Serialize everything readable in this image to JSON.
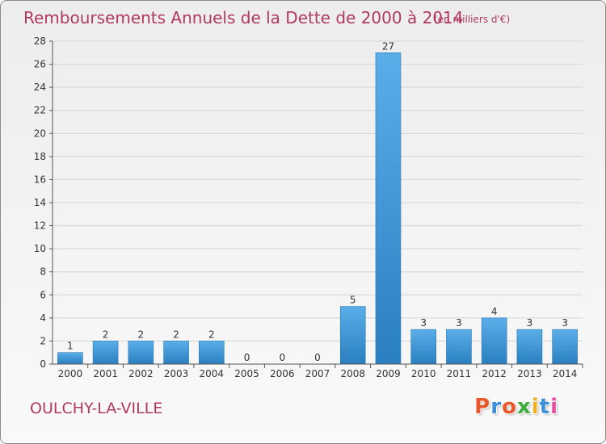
{
  "header": {
    "title": "Remboursements Annuels de la Dette de 2000 à 2014",
    "unit": "(en milliers d'€)"
  },
  "footer": {
    "commune": "OULCHY-LA-VILLE",
    "logo": "Proxiti"
  },
  "colors": {
    "bar_top": "#5aaee8",
    "bar_bottom": "#2a7fc0",
    "title": "#b03a5c",
    "logo_letters": [
      "#e8572a",
      "#3a8fd8",
      "#e8572a",
      "#3cae3c",
      "#f0b020",
      "#3a8fd8",
      "#e84ea0"
    ]
  },
  "chart_data": {
    "type": "bar",
    "categories": [
      "2000",
      "2001",
      "2002",
      "2003",
      "2004",
      "2005",
      "2006",
      "2007",
      "2008",
      "2009",
      "2010",
      "2011",
      "2012",
      "2013",
      "2014"
    ],
    "values": [
      1,
      2,
      2,
      2,
      2,
      0,
      0,
      0,
      5,
      27,
      3,
      3,
      4,
      3,
      3
    ],
    "ylim": [
      0,
      28
    ],
    "yticks": [
      0,
      2,
      4,
      6,
      8,
      10,
      12,
      14,
      16,
      18,
      20,
      22,
      24,
      26,
      28
    ],
    "grid": true
  }
}
